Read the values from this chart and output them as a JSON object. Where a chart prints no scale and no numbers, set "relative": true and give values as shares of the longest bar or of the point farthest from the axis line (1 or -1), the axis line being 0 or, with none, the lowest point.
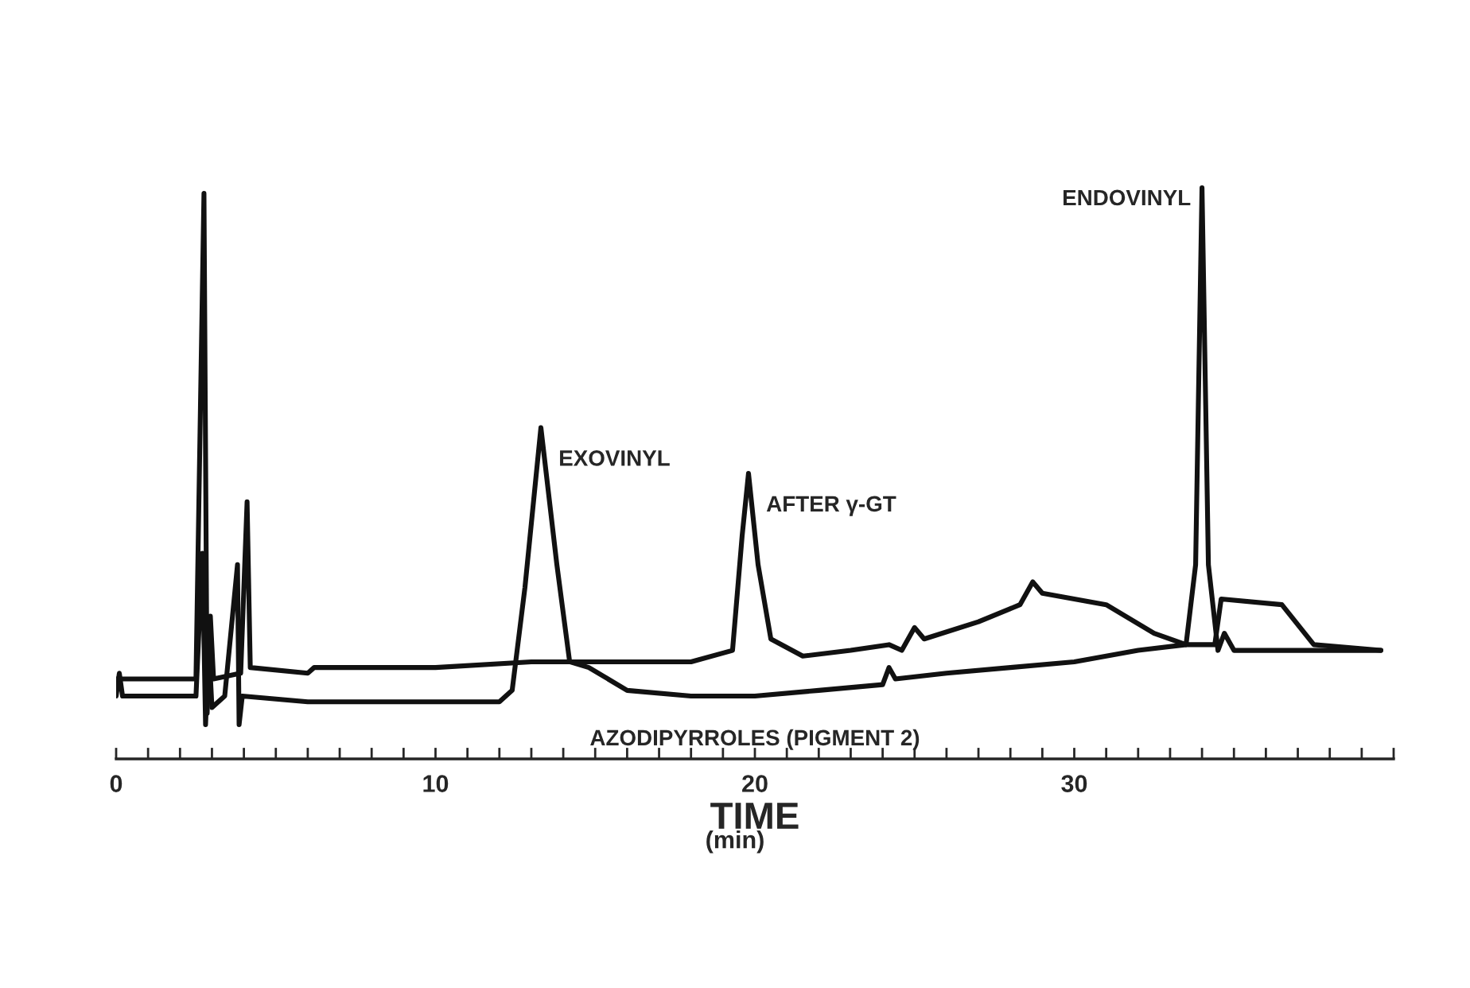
{
  "chart_data": {
    "type": "line",
    "relative": true,
    "xlabel": "TIME",
    "x": [
      0,
      0.1,
      0.2,
      2.5,
      2.7,
      2.8,
      2.9,
      3.0,
      3.4,
      3.8,
      3.85,
      3.95,
      6,
      10,
      12,
      12.4,
      12.8,
      13.3,
      13.8,
      14.2,
      14.8,
      16,
      18,
      20,
      22,
      24,
      24.2,
      24.4,
      26,
      28,
      30,
      32,
      33.5,
      33.8,
      34.0,
      34.2,
      34.5,
      34.7,
      35,
      37,
      39.6
    ],
    "series": [
      {
        "color": "#111111",
        "values": [
          0.11,
          0.15,
          0.11,
          0.11,
          0.36,
          0.06,
          0.2,
          0.09,
          0.11,
          0.34,
          0.06,
          0.11,
          0.1,
          0.1,
          0.1,
          0.12,
          0.3,
          0.58,
          0.34,
          0.17,
          0.16,
          0.12,
          0.11,
          0.11,
          0.12,
          0.13,
          0.16,
          0.14,
          0.15,
          0.16,
          0.17,
          0.19,
          0.2,
          0.34,
          1.0,
          0.34,
          0.19,
          0.22,
          0.19,
          0.19,
          0.19
        ]
      },
      {
        "color": "#111111",
        "x": [
          0,
          2.5,
          2.75,
          2.85,
          2.95,
          3.05,
          3.9,
          4.1,
          4.2,
          6,
          6.2,
          10,
          13,
          15,
          18,
          19.3,
          19.6,
          19.8,
          20.1,
          20.5,
          21.5,
          23,
          24.2,
          24.6,
          25.0,
          25.3,
          27,
          28.3,
          28.7,
          29,
          31,
          32.5,
          33.5,
          34.4,
          34.6,
          36.5,
          37.5,
          39.6
        ],
        "values": [
          0.14,
          0.14,
          0.99,
          0.08,
          0.25,
          0.14,
          0.15,
          0.45,
          0.16,
          0.15,
          0.16,
          0.16,
          0.17,
          0.17,
          0.17,
          0.19,
          0.39,
          0.5,
          0.34,
          0.21,
          0.18,
          0.19,
          0.2,
          0.19,
          0.23,
          0.21,
          0.24,
          0.27,
          0.31,
          0.29,
          0.27,
          0.22,
          0.2,
          0.2,
          0.28,
          0.27,
          0.2,
          0.19
        ]
      }
    ],
    "xlim": [
      0,
      40
    ],
    "xticks": [
      0,
      {
        "value": 1,
        "label": null
      },
      {
        "value": 2,
        "label": null
      },
      {
        "value": 3,
        "label": null
      },
      {
        "value": 4,
        "label": null
      },
      {
        "value": 5,
        "label": null
      },
      {
        "value": 6,
        "label": null
      },
      {
        "value": 7,
        "label": null
      },
      {
        "value": 8,
        "label": null
      },
      {
        "value": 9,
        "label": null
      },
      10,
      {
        "value": 11,
        "label": null
      },
      {
        "value": 12,
        "label": null
      },
      {
        "value": 13,
        "label": null
      },
      {
        "value": 14,
        "label": null
      },
      {
        "value": 15,
        "label": null
      },
      {
        "value": 16,
        "label": null
      },
      {
        "value": 17,
        "label": null
      },
      {
        "value": 18,
        "label": null
      },
      {
        "value": 19,
        "label": null
      },
      20,
      {
        "value": 21,
        "label": null
      },
      {
        "value": 22,
        "label": null
      },
      {
        "value": 23,
        "label": null
      },
      {
        "value": 24,
        "label": null
      },
      {
        "value": 25,
        "label": null
      },
      {
        "value": 26,
        "label": null
      },
      {
        "value": 27,
        "label": null
      },
      {
        "value": 28,
        "label": null
      },
      {
        "value": 29,
        "label": null
      },
      30,
      {
        "value": 31,
        "label": null
      },
      {
        "value": 32,
        "label": null
      },
      {
        "value": 33,
        "label": null
      },
      {
        "value": 34,
        "label": null
      },
      {
        "value": 35,
        "label": null
      },
      {
        "value": 36,
        "label": null
      },
      {
        "value": 37,
        "label": null
      },
      {
        "value": 38,
        "label": null
      },
      {
        "value": 39,
        "label": null
      },
      {
        "value": 40,
        "label": null
      }
    ],
    "tick_labels": "x",
    "annotations": [
      {
        "text": "EXOVINYL",
        "x": 13.3,
        "y": 0.58
      },
      {
        "text": "AFTER γ-GT",
        "x": 19.8,
        "y": 0.5
      },
      {
        "text": "ENDOVINYL",
        "x": 34.0,
        "y": 1.0
      },
      "AZODIPYRROLES (PIGMENT 2)",
      "(min)"
    ]
  }
}
